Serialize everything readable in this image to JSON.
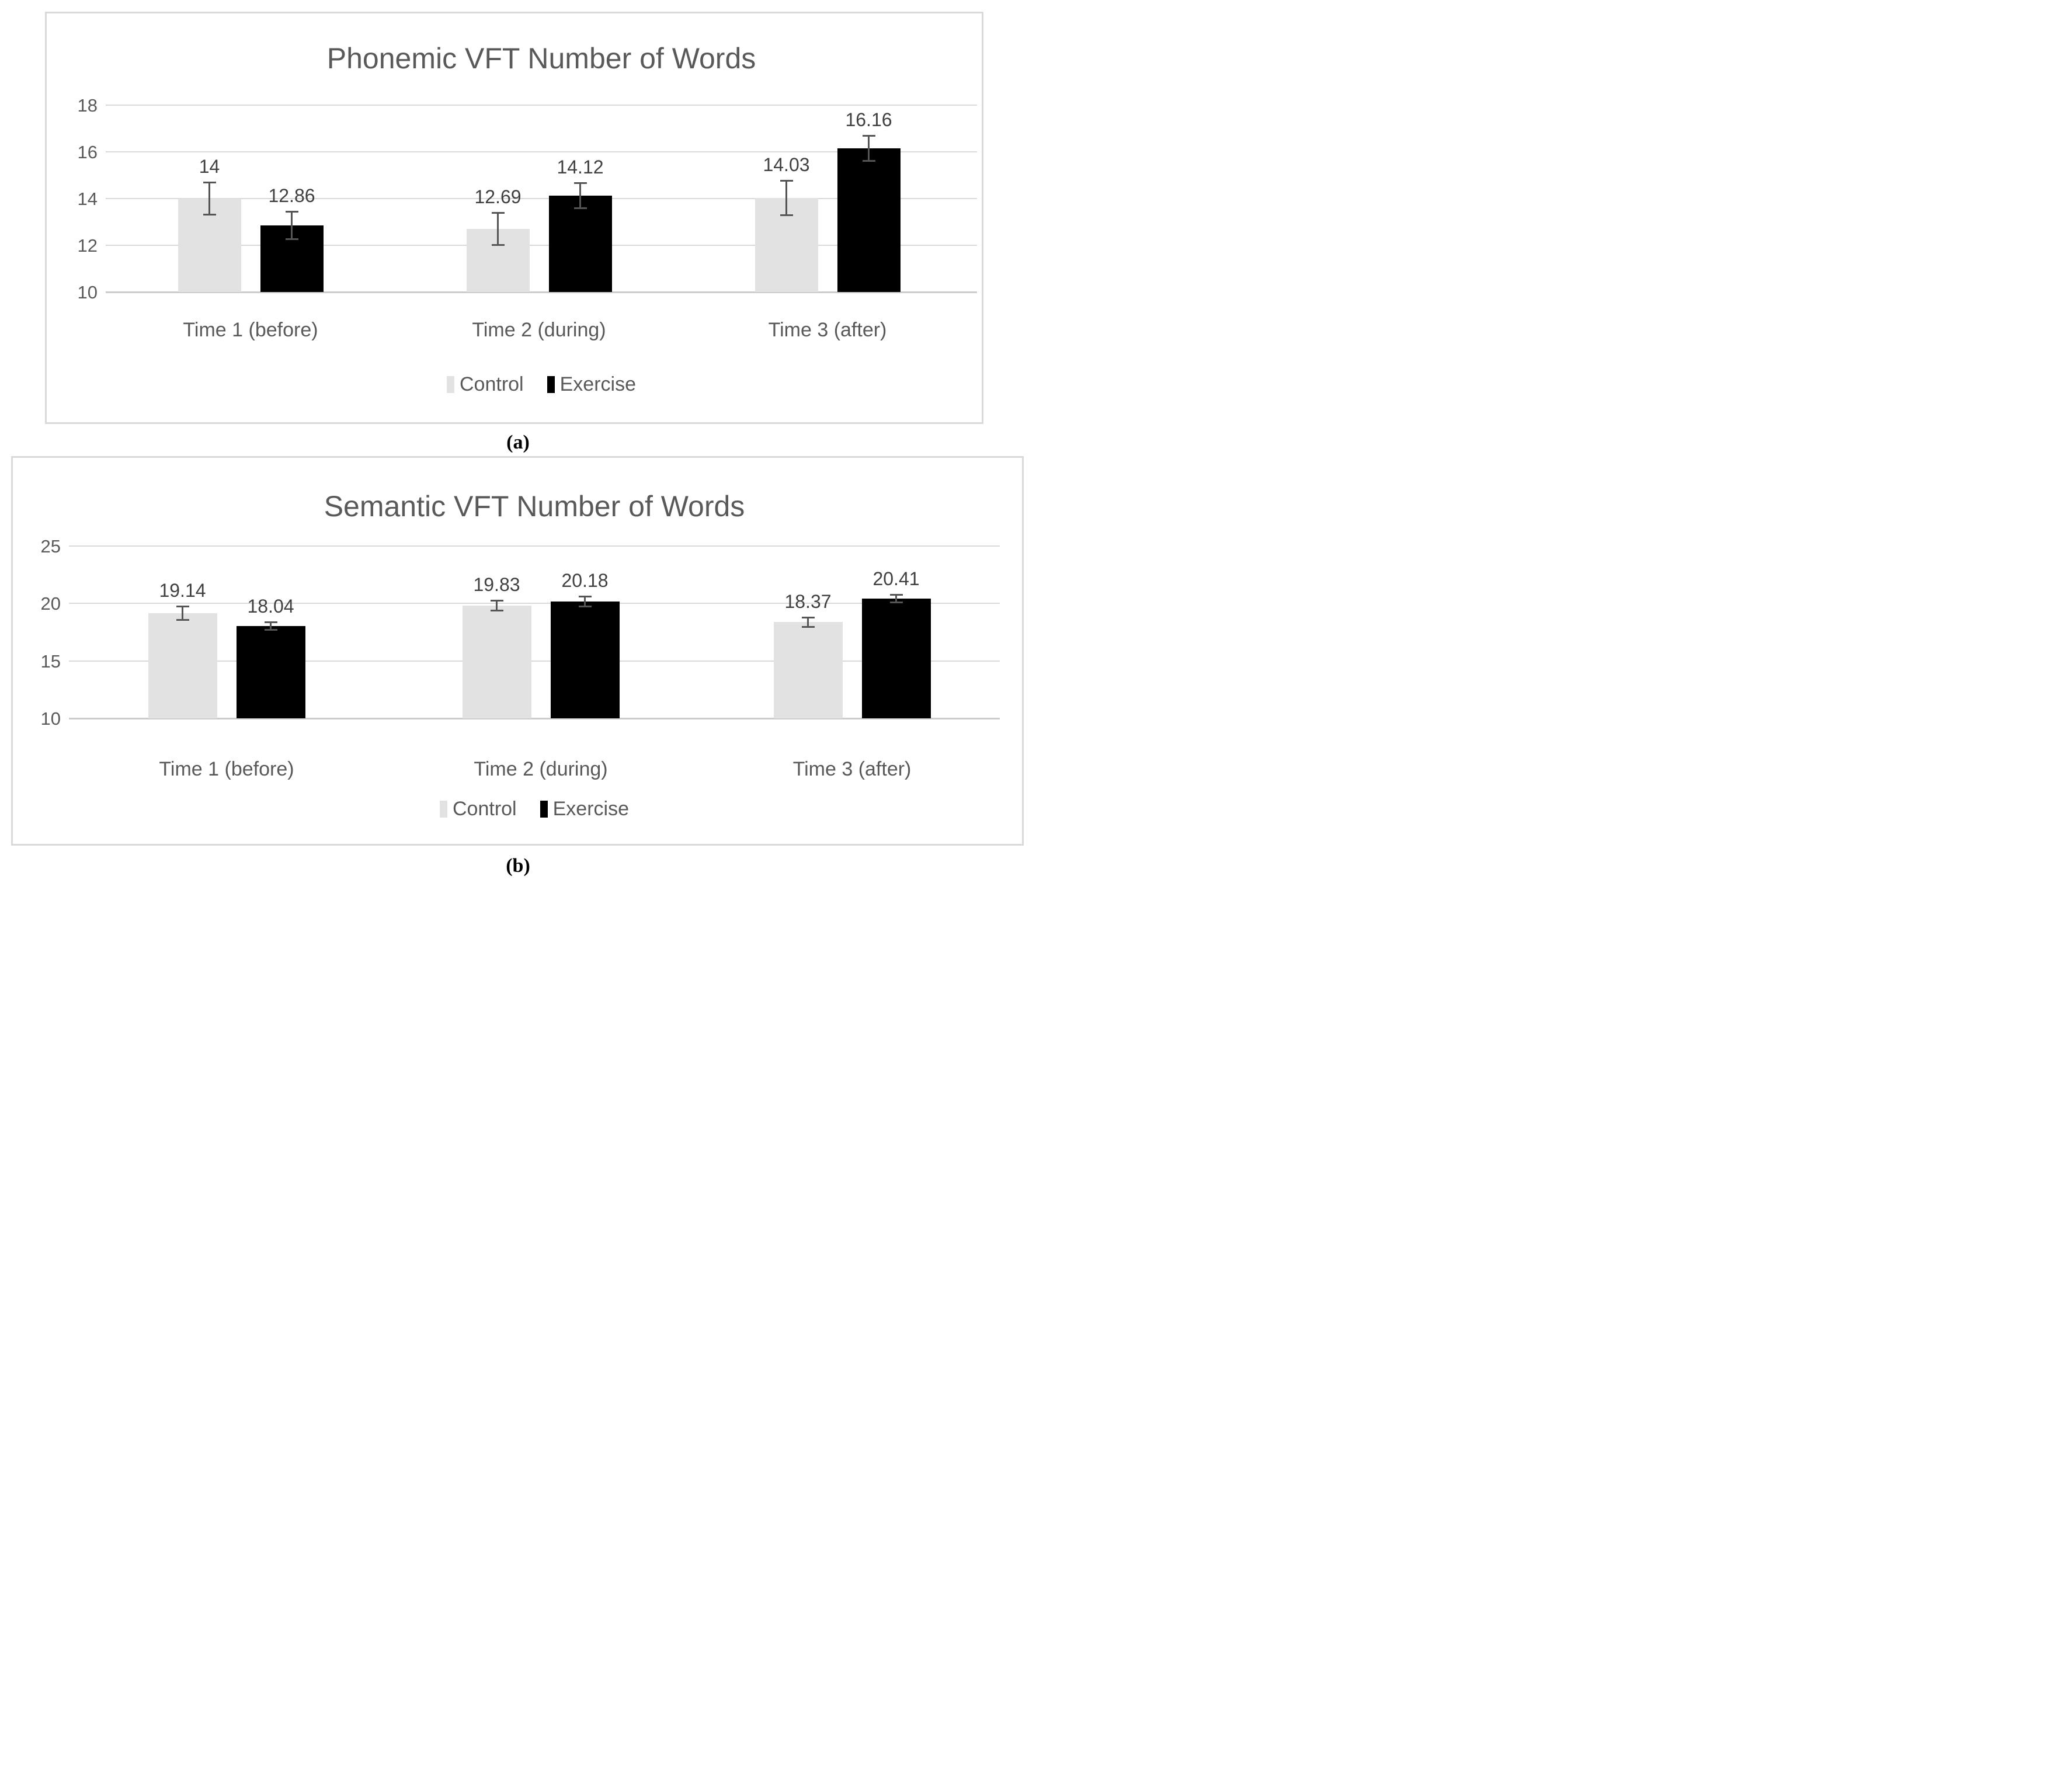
{
  "colors": {
    "control_fill": "#e2e2e2",
    "exercise_fill": "#000000",
    "gridline": "#d9d9d9",
    "panel_border": "#d9d9d9",
    "title_text": "#595959",
    "axis_text": "#595959",
    "data_label_text": "#404040",
    "error_bar": "#555555"
  },
  "legend": {
    "control_label": "Control",
    "exercise_label": "Exercise"
  },
  "chart_data": [
    {
      "id": "phonemic",
      "type": "bar",
      "title": "Phonemic VFT Number of Words",
      "categories": [
        "Time 1 (before)",
        "Time 2 (during)",
        "Time 3 (after)"
      ],
      "series": [
        {
          "name": "Control",
          "values": [
            14,
            12.69,
            14.03
          ],
          "labels": [
            "14",
            "12.69",
            "14.03"
          ],
          "errors": [
            0.7,
            0.7,
            0.75
          ]
        },
        {
          "name": "Exercise",
          "values": [
            12.86,
            14.12,
            16.16
          ],
          "labels": [
            "12.86",
            "14.12",
            "16.16"
          ],
          "errors": [
            0.6,
            0.55,
            0.55
          ]
        }
      ],
      "ylim": [
        10,
        18
      ],
      "yticks": [
        18,
        16,
        14,
        12,
        10
      ],
      "grid": true,
      "legend_position": "bottom",
      "caption": "(a)"
    },
    {
      "id": "semantic",
      "type": "bar",
      "title": "Semantic VFT Number of Words",
      "categories": [
        "Time 1 (before)",
        "Time 2 (during)",
        "Time 3 (after)"
      ],
      "series": [
        {
          "name": "Control",
          "values": [
            19.14,
            19.83,
            18.37
          ],
          "labels": [
            "19.14",
            "19.83",
            "18.37"
          ],
          "errors": [
            0.6,
            0.45,
            0.45
          ]
        },
        {
          "name": "Exercise",
          "values": [
            18.04,
            20.18,
            20.41
          ],
          "labels": [
            "18.04",
            "20.18",
            "20.41"
          ],
          "errors": [
            0.35,
            0.45,
            0.35
          ]
        }
      ],
      "ylim": [
        10,
        25
      ],
      "yticks": [
        25,
        20,
        15,
        10
      ],
      "grid": true,
      "legend_position": "bottom",
      "caption": "(b)"
    }
  ]
}
